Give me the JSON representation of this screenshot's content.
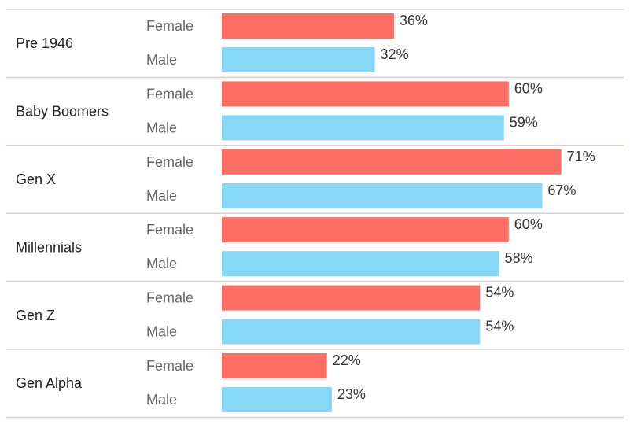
{
  "chart_data": {
    "type": "bar",
    "orientation": "horizontal",
    "groups": [
      {
        "label": "Pre 1946",
        "bars": [
          {
            "sex": "Female",
            "value": 36,
            "label": "36%"
          },
          {
            "sex": "Male",
            "value": 32,
            "label": "32%"
          }
        ]
      },
      {
        "label": "Baby Boomers",
        "bars": [
          {
            "sex": "Female",
            "value": 60,
            "label": "60%"
          },
          {
            "sex": "Male",
            "value": 59,
            "label": "59%"
          }
        ]
      },
      {
        "label": "Gen X",
        "bars": [
          {
            "sex": "Female",
            "value": 71,
            "label": "71%"
          },
          {
            "sex": "Male",
            "value": 67,
            "label": "67%"
          }
        ]
      },
      {
        "label": "Millennials",
        "bars": [
          {
            "sex": "Female",
            "value": 60,
            "label": "60%"
          },
          {
            "sex": "Male",
            "value": 58,
            "label": "58%"
          }
        ]
      },
      {
        "label": "Gen Z",
        "bars": [
          {
            "sex": "Female",
            "value": 54,
            "label": "54%"
          },
          {
            "sex": "Male",
            "value": 54,
            "label": "54%"
          }
        ]
      },
      {
        "label": "Gen Alpha",
        "bars": [
          {
            "sex": "Female",
            "value": 22,
            "label": "22%"
          },
          {
            "sex": "Male",
            "value": 23,
            "label": "23%"
          }
        ]
      }
    ],
    "colors": {
      "Female": "#ff6e65",
      "Male": "#87d8f6",
      "divider": "#d9d0cb"
    },
    "xlim": [
      0,
      100
    ],
    "grid": false,
    "legend": "none"
  }
}
